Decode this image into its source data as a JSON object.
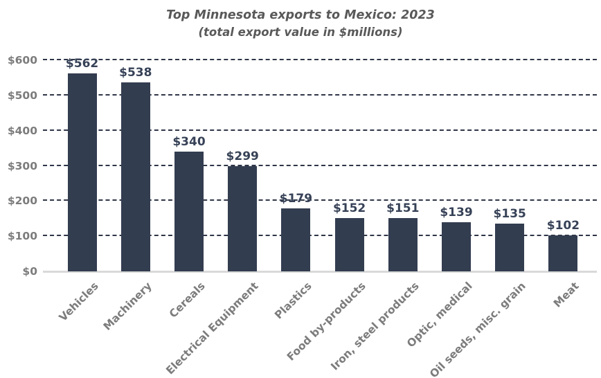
{
  "title": {
    "line1": "Top Minnesota exports to Mexico: 2023",
    "line2": "(total export value in $millions)"
  },
  "chart_data": {
    "type": "bar",
    "title": "Top Minnesota exports to Mexico: 2023",
    "subtitle": "(total export value in $millions)",
    "categories": [
      "Vehicles",
      "Machinery",
      "Cereals",
      "Electrical Equipment",
      "Plastics",
      "Food by-products",
      "Iron, steel products",
      "Optic, medical",
      "Oil seeds, misc. grain",
      "Meat"
    ],
    "values": [
      562,
      538,
      340,
      299,
      179,
      152,
      151,
      139,
      135,
      102
    ],
    "value_labels": [
      "$562",
      "$538",
      "$340",
      "$299",
      "$179",
      "$152",
      "$151",
      "$139",
      "$135",
      "$102"
    ],
    "xlabel": "",
    "ylabel": "",
    "ylim": [
      0,
      600
    ],
    "y_tick_values": [
      0,
      100,
      200,
      300,
      400,
      500,
      600
    ],
    "y_tick_labels": [
      "$0",
      "$100",
      "$200",
      "$300",
      "$400",
      "$500",
      "$600"
    ],
    "grid": "horizontal-dashed",
    "legend": "none",
    "colors": {
      "bar": "#333D50",
      "value_label": "#374257",
      "axis_label": "#7C7C7C",
      "title": "#595959",
      "gridline": "#2E3547",
      "baseline": "#D9D9D9",
      "background": "#FFFFFF"
    }
  }
}
